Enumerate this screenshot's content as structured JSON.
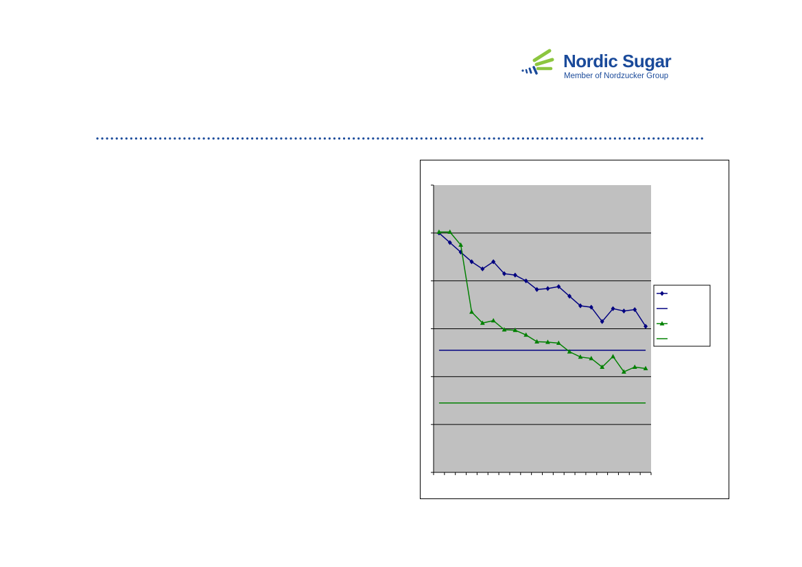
{
  "brand": {
    "name": "Nordic Sugar",
    "tagline": "Member of Nordzucker Group",
    "colors": {
      "blue": "#1a4a9a",
      "green": "#8cc63f"
    }
  },
  "chart_data": {
    "type": "line",
    "title": "",
    "xlabel": "",
    "ylabel": "",
    "ylim": [
      0,
      6
    ],
    "y_gridlines": [
      1,
      2,
      3,
      4,
      5
    ],
    "x_count": 20,
    "plot_background": "#c0c0c0",
    "legend_position": "right",
    "series": [
      {
        "color": "#000080",
        "marker": "diamond",
        "values": [
          5.0,
          4.8,
          4.6,
          4.4,
          4.25,
          4.4,
          4.15,
          4.12,
          4.0,
          3.82,
          3.84,
          3.88,
          3.68,
          3.48,
          3.45,
          3.15,
          3.42,
          3.37,
          3.4,
          3.05
        ]
      },
      {
        "color": "#000080",
        "marker": "none",
        "values": [
          2.55,
          2.55,
          2.55,
          2.55,
          2.55,
          2.55,
          2.55,
          2.55,
          2.55,
          2.55,
          2.55,
          2.55,
          2.55,
          2.55,
          2.55,
          2.55,
          2.55,
          2.55,
          2.55,
          2.55
        ]
      },
      {
        "color": "#008000",
        "marker": "triangle",
        "values": [
          5.02,
          5.02,
          4.75,
          3.35,
          3.12,
          3.17,
          2.98,
          2.97,
          2.87,
          2.73,
          2.72,
          2.7,
          2.52,
          2.41,
          2.38,
          2.2,
          2.42,
          2.1,
          2.2,
          2.17
        ]
      },
      {
        "color": "#008000",
        "marker": "none",
        "values": [
          1.45,
          1.45,
          1.45,
          1.45,
          1.45,
          1.45,
          1.45,
          1.45,
          1.45,
          1.45,
          1.45,
          1.45,
          1.45,
          1.45,
          1.45,
          1.45,
          1.45,
          1.45,
          1.45,
          1.45
        ]
      }
    ]
  }
}
